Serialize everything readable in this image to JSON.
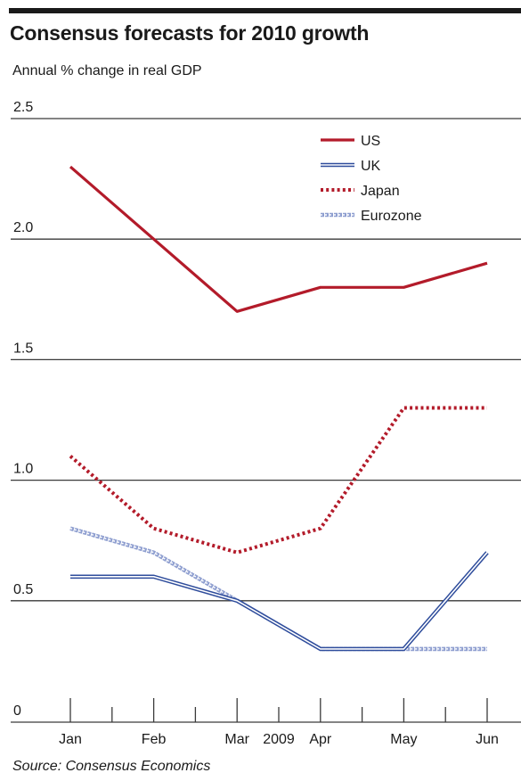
{
  "chart_data": {
    "type": "line",
    "title": "Consensus forecasts for 2010 growth",
    "subtitle": "Annual % change in real GDP",
    "source": "Source: Consensus Economics",
    "categories": [
      "Jan",
      "Feb",
      "Mar",
      "Apr",
      "May",
      "Jun"
    ],
    "x_axis_label": "2009",
    "ylim": [
      0,
      2.5
    ],
    "y_ticks": [
      "0",
      "0.5",
      "1.0",
      "1.5",
      "2.0",
      "2.5"
    ],
    "grid": true,
    "legend_position": "top-right",
    "series": [
      {
        "name": "US",
        "style": "solid",
        "color": "#b31b2a",
        "values": [
          2.3,
          2.0,
          1.7,
          1.8,
          1.8,
          1.9
        ]
      },
      {
        "name": "UK",
        "style": "double-line",
        "color": "#2f4d9c",
        "values": [
          0.6,
          0.6,
          0.5,
          0.3,
          0.3,
          0.7
        ]
      },
      {
        "name": "Japan",
        "style": "dotted",
        "color": "#b31b2a",
        "values": [
          1.1,
          0.8,
          0.7,
          0.8,
          1.3,
          1.3
        ]
      },
      {
        "name": "Eurozone",
        "style": "hollow-dots",
        "color": "#8f9fd0",
        "values": [
          0.8,
          0.7,
          0.5,
          0.3,
          0.3,
          0.3
        ]
      }
    ]
  }
}
